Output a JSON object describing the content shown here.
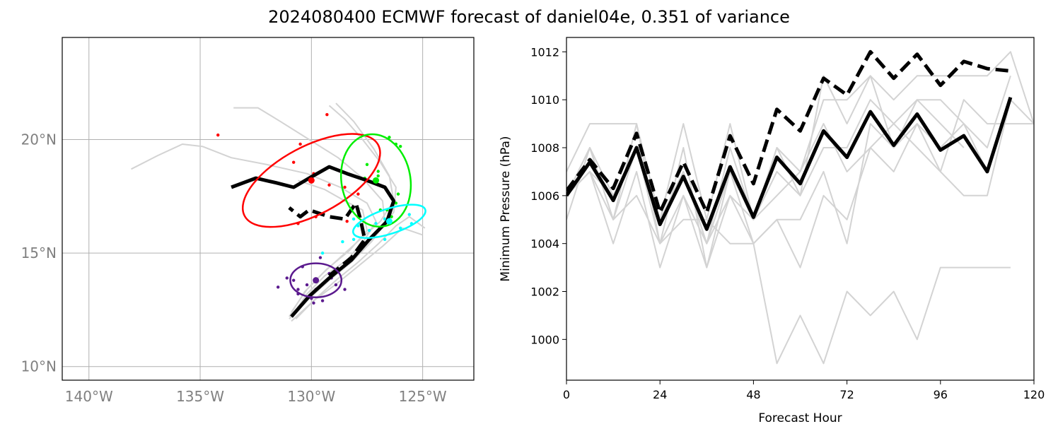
{
  "title": "2024080400 ECMWF forecast of daniel04e, 0.351 of variance",
  "colors": {
    "member": "#d3d3d3",
    "mean": "#000000",
    "grid": "#b0b0b0",
    "cluster_red": "#ff0000",
    "cluster_green": "#00ee00",
    "cluster_cyan": "#00ffff",
    "cluster_purple": "#5b1a8e"
  },
  "chart_data": [
    {
      "type": "map-tracks",
      "xlim": [
        -141.2,
        -122.7
      ],
      "ylim": [
        9.4,
        24.5
      ],
      "grid": true,
      "lon_ticks": [
        {
          "value": -140,
          "label": "140°W"
        },
        {
          "value": -135,
          "label": "135°W"
        },
        {
          "value": -130,
          "label": "130°W"
        },
        {
          "value": -125,
          "label": "125°W"
        }
      ],
      "lat_ticks": [
        {
          "value": 10,
          "label": "10°N"
        },
        {
          "value": 15,
          "label": "15°N"
        },
        {
          "value": 20,
          "label": "20°N"
        }
      ],
      "member_tracks": [
        [
          [
            -130.9,
            12.2
          ],
          [
            -130.2,
            13.2
          ],
          [
            -129.4,
            14.0
          ],
          [
            -128.4,
            14.7
          ],
          [
            -127.6,
            15.6
          ],
          [
            -127.1,
            16.4
          ],
          [
            -127.5,
            17.2
          ],
          [
            -128.7,
            17.9
          ],
          [
            -130.2,
            18.5
          ],
          [
            -132.0,
            18.9
          ],
          [
            -133.6,
            19.2
          ],
          [
            -134.9,
            19.7
          ],
          [
            -135.8,
            19.8
          ],
          [
            -136.9,
            19.3
          ],
          [
            -138.1,
            18.7
          ]
        ],
        [
          [
            -131.0,
            12.1
          ],
          [
            -130.1,
            13.0
          ],
          [
            -129.2,
            13.8
          ],
          [
            -128.2,
            14.6
          ],
          [
            -127.3,
            15.5
          ],
          [
            -126.7,
            16.3
          ],
          [
            -126.8,
            17.3
          ],
          [
            -127.7,
            18.3
          ],
          [
            -128.8,
            19.2
          ],
          [
            -130.1,
            20.0
          ],
          [
            -131.4,
            20.8
          ],
          [
            -132.4,
            21.4
          ],
          [
            -133.5,
            21.4
          ]
        ],
        [
          [
            -130.8,
            12.3
          ],
          [
            -130.0,
            13.3
          ],
          [
            -129.0,
            14.1
          ],
          [
            -128.0,
            14.9
          ],
          [
            -127.1,
            15.8
          ],
          [
            -126.3,
            16.8
          ],
          [
            -126.2,
            17.9
          ],
          [
            -126.9,
            19.0
          ],
          [
            -127.7,
            20.0
          ],
          [
            -128.5,
            20.9
          ],
          [
            -129.2,
            21.5
          ]
        ],
        [
          [
            -130.9,
            12.0
          ],
          [
            -129.9,
            12.9
          ],
          [
            -128.8,
            13.7
          ],
          [
            -127.8,
            14.5
          ],
          [
            -126.8,
            15.3
          ],
          [
            -125.9,
            16.1
          ],
          [
            -125.0,
            15.8
          ]
        ],
        [
          [
            -131.0,
            12.2
          ],
          [
            -130.3,
            13.3
          ],
          [
            -129.5,
            14.1
          ],
          [
            -128.6,
            14.9
          ],
          [
            -127.7,
            15.7
          ],
          [
            -126.9,
            16.4
          ],
          [
            -126.3,
            17.3
          ],
          [
            -126.5,
            18.4
          ],
          [
            -127.2,
            19.6
          ],
          [
            -128.1,
            20.8
          ],
          [
            -128.9,
            21.6
          ]
        ],
        [
          [
            -130.9,
            12.4
          ],
          [
            -130.2,
            13.4
          ],
          [
            -129.3,
            14.3
          ],
          [
            -128.3,
            15.1
          ],
          [
            -127.5,
            16.0
          ],
          [
            -127.7,
            16.9
          ],
          [
            -128.5,
            17.3
          ],
          [
            -129.4,
            17.8
          ],
          [
            -130.6,
            18.2
          ]
        ],
        [
          [
            -130.7,
            12.1
          ],
          [
            -129.8,
            13.0
          ],
          [
            -128.9,
            13.8
          ],
          [
            -127.9,
            14.6
          ],
          [
            -127.0,
            15.4
          ],
          [
            -126.2,
            16.2
          ],
          [
            -125.6,
            16.6
          ],
          [
            -124.9,
            16.1
          ]
        ]
      ],
      "mean_tracks": [
        {
          "style": "solid",
          "points": [
            [
              -130.9,
              12.2
            ],
            [
              -130.1,
              13.1
            ],
            [
              -129.2,
              13.9
            ],
            [
              -128.2,
              14.7
            ],
            [
              -127.4,
              15.6
            ],
            [
              -126.6,
              16.4
            ],
            [
              -126.3,
              17.3
            ],
            [
              -126.7,
              17.9
            ],
            [
              -127.5,
              18.2
            ],
            [
              -128.4,
              18.5
            ],
            [
              -129.2,
              18.8
            ],
            [
              -130.1,
              18.3
            ],
            [
              -130.8,
              17.9
            ],
            [
              -131.6,
              18.1
            ],
            [
              -132.5,
              18.3
            ],
            [
              -133.6,
              17.9
            ]
          ]
        },
        {
          "style": "dashed",
          "points": [
            [
              -129.2,
              14.0
            ],
            [
              -128.2,
              14.8
            ],
            [
              -127.6,
              15.6
            ],
            [
              -127.8,
              16.5
            ],
            [
              -128.0,
              17.2
            ],
            [
              -128.5,
              16.5
            ],
            [
              -129.2,
              16.6
            ],
            [
              -130.1,
              16.9
            ],
            [
              -130.5,
              16.6
            ],
            [
              -131.0,
              17.0
            ]
          ]
        }
      ],
      "clusters": [
        {
          "color": "cluster_red",
          "center": [
            -130.0,
            18.2
          ],
          "width_deg": 6.8,
          "height_deg": 3.0,
          "angle_deg": 28,
          "points": [
            [
              -134.2,
              20.2
            ],
            [
              -129.3,
              21.1
            ],
            [
              -130.5,
              19.8
            ],
            [
              -130.8,
              19.0
            ],
            [
              -129.9,
              18.5
            ],
            [
              -129.2,
              18.0
            ],
            [
              -128.5,
              17.9
            ],
            [
              -127.9,
              17.6
            ],
            [
              -128.2,
              16.9
            ],
            [
              -129.8,
              16.6
            ],
            [
              -128.4,
              16.4
            ],
            [
              -130.6,
              16.3
            ]
          ]
        },
        {
          "color": "cluster_green",
          "center": [
            -127.1,
            18.2
          ],
          "width_deg": 3.1,
          "height_deg": 4.1,
          "angle_deg": 10,
          "points": [
            [
              -126.5,
              20.1
            ],
            [
              -126.2,
              19.8
            ],
            [
              -126.0,
              19.7
            ],
            [
              -127.5,
              18.9
            ],
            [
              -127.0,
              18.6
            ],
            [
              -127.0,
              18.4
            ],
            [
              -127.6,
              18.3
            ],
            [
              -126.5,
              17.6
            ],
            [
              -126.1,
              17.6
            ],
            [
              -126.2,
              17.2
            ],
            [
              -126.6,
              16.9
            ],
            [
              -126.9,
              16.9
            ],
            [
              -126.4,
              16.6
            ]
          ]
        },
        {
          "color": "cluster_cyan",
          "center": [
            -126.5,
            16.4
          ],
          "width_deg": 3.4,
          "height_deg": 1.1,
          "angle_deg": 18,
          "points": [
            [
              -125.6,
              16.7
            ],
            [
              -125.5,
              16.3
            ],
            [
              -126.0,
              16.1
            ],
            [
              -126.7,
              16.5
            ],
            [
              -127.1,
              16.3
            ],
            [
              -127.4,
              16.0
            ],
            [
              -126.7,
              15.6
            ],
            [
              -128.1,
              16.5
            ],
            [
              -128.1,
              15.6
            ],
            [
              -128.6,
              15.5
            ],
            [
              -129.5,
              15.0
            ],
            [
              -127.9,
              16.2
            ]
          ]
        },
        {
          "color": "cluster_purple",
          "center": [
            -129.8,
            13.8
          ],
          "width_deg": 2.3,
          "height_deg": 1.5,
          "angle_deg": 0,
          "points": [
            [
              -129.6,
              14.8
            ],
            [
              -128.8,
              14.3
            ],
            [
              -129.2,
              14.1
            ],
            [
              -130.4,
              14.4
            ],
            [
              -130.8,
              13.8
            ],
            [
              -131.1,
              13.9
            ],
            [
              -130.2,
              13.6
            ],
            [
              -130.6,
              13.4
            ],
            [
              -129.8,
              13.4
            ],
            [
              -130.0,
              13.0
            ],
            [
              -129.5,
              12.9
            ],
            [
              -128.5,
              13.4
            ],
            [
              -131.5,
              13.5
            ],
            [
              -129.9,
              12.8
            ],
            [
              -128.9,
              13.6
            ],
            [
              -130.6,
              13.2
            ],
            [
              -129.1,
              13.9
            ]
          ]
        }
      ]
    },
    {
      "type": "line",
      "xlabel": "Forecast Hour",
      "ylabel": "Minimum Pressure (hPa)",
      "xlim": [
        0,
        120
      ],
      "ylim": [
        998.3,
        1012.6
      ],
      "xticks": [
        0,
        24,
        48,
        72,
        96,
        120
      ],
      "yticks": [
        1000,
        1002,
        1004,
        1006,
        1008,
        1010,
        1012
      ],
      "x": [
        0,
        6,
        12,
        18,
        24,
        30,
        36,
        42,
        48,
        54,
        60,
        66,
        72,
        78,
        84,
        90,
        96,
        102,
        108,
        114,
        120
      ],
      "member_series": [
        [
          1006,
          1007,
          1005,
          1006,
          1004,
          1005,
          1005,
          1004,
          1004,
          999,
          1001,
          999,
          1002,
          1001,
          1002,
          1000,
          1003,
          1003,
          1003,
          1003,
          null
        ],
        [
          1006,
          1008,
          1006,
          1008,
          1005,
          1007,
          1004,
          1007,
          1004,
          1005,
          1003,
          1006,
          1005,
          1008,
          1007,
          1009,
          1008,
          1009,
          1007,
          1010,
          null
        ],
        [
          1007,
          1009,
          1009,
          1009,
          1005,
          1009,
          1005,
          1009,
          1005,
          1008,
          1007,
          1010,
          1010,
          1011,
          1010,
          1011,
          1011,
          1011,
          1011,
          1012,
          1009
        ],
        [
          1006,
          1007,
          1004,
          1007,
          1003,
          1006,
          1003,
          1006,
          1004,
          1005,
          1005,
          1007,
          1004,
          1009,
          1008,
          1009,
          1007,
          1006,
          1006,
          1010,
          1009
        ],
        [
          1005,
          1008,
          1005,
          1008,
          1004,
          1006,
          1004,
          1006,
          1005,
          1007,
          1006,
          1008,
          1008,
          1010,
          1009,
          1010,
          1010,
          1009,
          1008,
          1011,
          null
        ],
        [
          1006,
          1007,
          1006,
          1008,
          1005,
          1007,
          1004,
          1008,
          1005,
          1006,
          1007,
          1009,
          1007,
          1008,
          1009,
          1008,
          1007,
          1010,
          1009,
          1009,
          1009
        ],
        [
          1006,
          1008,
          1005,
          1009,
          1004,
          1008,
          1003,
          1007,
          1005,
          1008,
          1006,
          1011,
          1009,
          1011,
          1008,
          1010,
          1009,
          1008,
          null,
          null,
          null
        ]
      ],
      "mean_series": [
        {
          "style": "solid",
          "values": [
            1006.0,
            1007.4,
            1005.8,
            1008.0,
            1004.8,
            1006.8,
            1004.6,
            1007.2,
            1005.1,
            1007.6,
            1006.5,
            1008.7,
            1007.6,
            1009.5,
            1008.1,
            1009.4,
            1007.9,
            1008.5,
            1007.0,
            1010.1,
            null
          ]
        },
        {
          "style": "dashed",
          "values": [
            1006.2,
            1007.5,
            1006.3,
            1008.6,
            1005.3,
            1007.4,
            1005.3,
            1008.5,
            1006.5,
            1009.6,
            1008.7,
            1010.9,
            1010.2,
            1012.0,
            1010.9,
            1011.9,
            1010.6,
            1011.6,
            1011.3,
            1011.2,
            null
          ]
        }
      ]
    }
  ]
}
